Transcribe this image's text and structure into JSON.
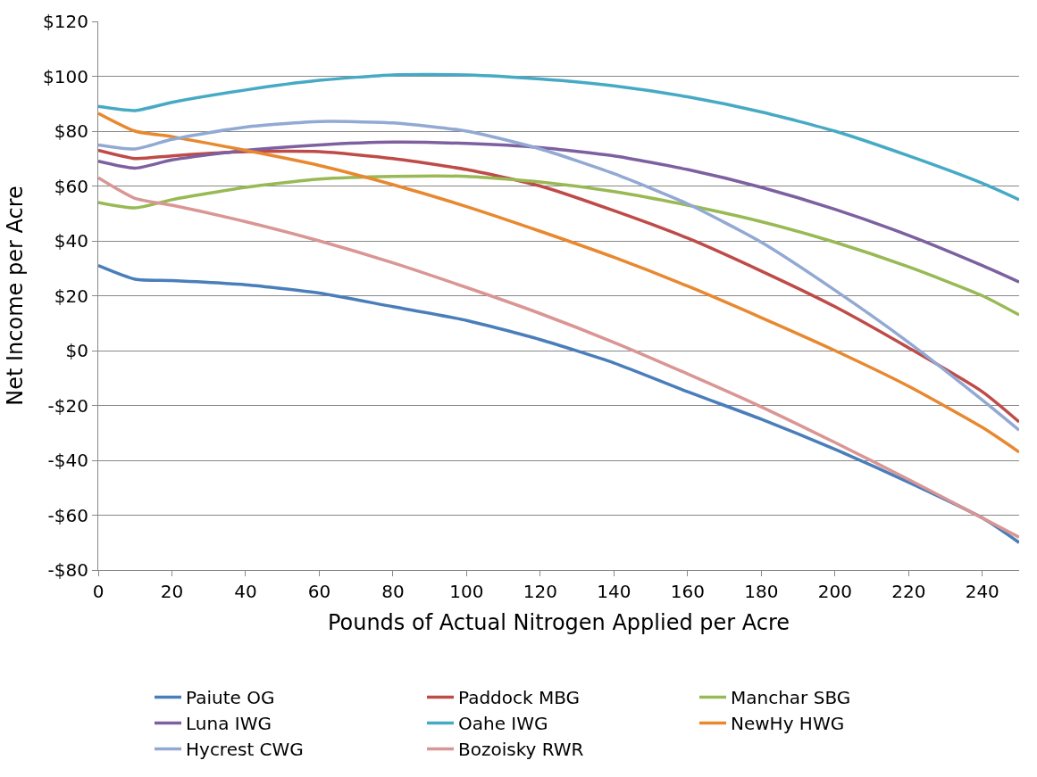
{
  "chart_data": {
    "type": "line",
    "xlabel": "Pounds of Actual Nitrogen Applied per Acre",
    "ylabel": "Net Income per Acre",
    "x": [
      0,
      10,
      20,
      40,
      60,
      80,
      100,
      120,
      140,
      160,
      180,
      200,
      220,
      240,
      250
    ],
    "series": [
      {
        "name": "Paiute OG",
        "color": "#4a7ebb",
        "values": [
          31,
          26,
          25.5,
          24,
          21,
          16,
          11,
          4,
          -4.5,
          -15,
          -25,
          -36,
          -48,
          -61,
          -70
        ]
      },
      {
        "name": "Paddock MBG",
        "color": "#be4b48",
        "values": [
          73,
          70,
          71,
          72.5,
          72.5,
          70,
          66,
          60,
          51,
          41,
          29,
          16,
          1,
          -15,
          -26
        ]
      },
      {
        "name": "Manchar SBG",
        "color": "#98b954",
        "values": [
          54,
          52,
          55,
          59.5,
          62.5,
          63.5,
          63.5,
          61.5,
          58,
          53,
          47,
          39.5,
          30.5,
          20,
          13
        ]
      },
      {
        "name": "Luna IWG",
        "color": "#7d60a0",
        "values": [
          69,
          66.5,
          69.5,
          73,
          75,
          76,
          75.5,
          74,
          71,
          66,
          59.5,
          51.5,
          42,
          31,
          25
        ]
      },
      {
        "name": "Oahe IWG",
        "color": "#46aac5",
        "values": [
          89,
          87.5,
          90.5,
          95,
          98.5,
          100.5,
          100.5,
          99,
          96.5,
          92.5,
          87,
          80,
          71,
          61,
          55
        ]
      },
      {
        "name": "NewHy HWG",
        "color": "#e8882f",
        "values": [
          86.5,
          80,
          78,
          73,
          67.5,
          60.5,
          52.5,
          43.5,
          34,
          23.5,
          12,
          0,
          -13,
          -28,
          -37
        ]
      },
      {
        "name": "Hycrest CWG",
        "color": "#91a9d3",
        "values": [
          75,
          73.5,
          77,
          81.5,
          83.5,
          83,
          80,
          73.5,
          64.5,
          53.5,
          39.5,
          22,
          3,
          -18,
          -29
        ]
      },
      {
        "name": "Bozoisky RWR",
        "color": "#d99694",
        "values": [
          63,
          55.5,
          53,
          47,
          40,
          32,
          23,
          13.5,
          3,
          -8.5,
          -20.5,
          -33.5,
          -47,
          -61,
          -68
        ]
      }
    ],
    "xlim": [
      0,
      250
    ],
    "xticks": [
      0,
      20,
      40,
      60,
      80,
      100,
      120,
      140,
      160,
      180,
      200,
      220,
      240
    ],
    "ylim": [
      -80,
      120
    ],
    "yticks": [
      {
        "value": -80,
        "label": "-$80"
      },
      {
        "value": -60,
        "label": "-$60"
      },
      {
        "value": -40,
        "label": "-$40"
      },
      {
        "value": -20,
        "label": "-$20"
      },
      {
        "value": 0,
        "label": "$0"
      },
      {
        "value": 20,
        "label": "$20"
      },
      {
        "value": 40,
        "label": "$40"
      },
      {
        "value": 60,
        "label": "$60"
      },
      {
        "value": 80,
        "label": "$80"
      },
      {
        "value": 100,
        "label": "$100"
      },
      {
        "value": 120,
        "label": "$120"
      }
    ],
    "grid": "y",
    "legend": "bottom",
    "marker": "none",
    "line_style": "solid"
  }
}
